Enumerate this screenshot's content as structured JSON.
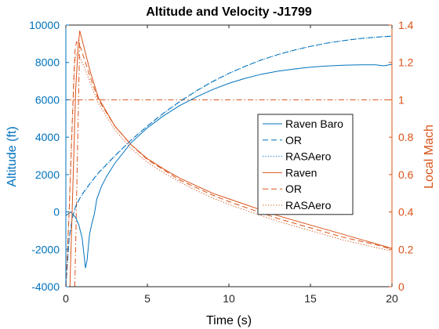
{
  "chart_data": {
    "type": "line",
    "title": "Altitude and Velocity -J1799",
    "xlabel": "Time (s)",
    "ylabel_left": "Altitude (ft)",
    "ylabel_right": "Local Mach",
    "xlim": [
      0,
      20
    ],
    "ylim_left": [
      -4000,
      10000
    ],
    "ylim_right": [
      0,
      1.4
    ],
    "xticks": [
      0,
      5,
      10,
      15,
      20
    ],
    "yticks_left": [
      -4000,
      -2000,
      0,
      2000,
      4000,
      6000,
      8000,
      10000
    ],
    "yticks_right": [
      0,
      0.2,
      0.4,
      0.6,
      0.8,
      1,
      1.2,
      1.4
    ],
    "grid": false,
    "legend_position": "center-right",
    "colors": {
      "left_axis": "#0072BD",
      "right_axis": "#D95319"
    },
    "series": [
      {
        "name": "Raven Baro",
        "axis": "left",
        "style": "solid",
        "x": [
          0,
          0.3,
          0.6,
          0.8,
          1.0,
          1.1,
          1.2,
          1.3,
          1.45,
          1.6,
          1.75,
          1.9,
          2.2,
          2.5,
          3,
          4,
          5,
          6,
          7,
          8,
          9,
          10,
          11,
          12,
          13,
          14,
          15,
          16,
          17,
          18,
          19,
          19.5,
          20
        ],
        "y": [
          -200,
          0,
          -300,
          -700,
          -1400,
          -2200,
          -3000,
          -2600,
          -1200,
          -600,
          -100,
          700,
          1400,
          1900,
          2600,
          3700,
          4500,
          5150,
          5700,
          6150,
          6550,
          6880,
          7150,
          7370,
          7530,
          7650,
          7750,
          7810,
          7850,
          7870,
          7870,
          7820,
          7900
        ]
      },
      {
        "name": "OR",
        "axis": "left",
        "style": "dashed",
        "x": [
          0,
          0.2,
          0.4,
          0.6,
          0.8,
          1,
          1.5,
          2,
          3,
          4,
          5,
          6,
          7,
          8,
          9,
          10,
          11,
          12,
          13,
          14,
          15,
          16,
          17,
          18,
          19,
          20
        ],
        "y": [
          -4000,
          -1400,
          -300,
          300,
          650,
          950,
          1550,
          2100,
          3000,
          3850,
          4600,
          5300,
          5920,
          6480,
          6980,
          7420,
          7800,
          8140,
          8420,
          8660,
          8860,
          9030,
          9160,
          9270,
          9350,
          9400
        ]
      },
      {
        "name": "RASAero",
        "axis": "left",
        "style": "dotted",
        "x": [
          0,
          0.2,
          0.4,
          0.6,
          0.8,
          1,
          1.5,
          2,
          3,
          4,
          5,
          6,
          7,
          8,
          9,
          10,
          11,
          12,
          13,
          14,
          15,
          16,
          17,
          18,
          19,
          20
        ],
        "y": [
          -4000,
          -1450,
          -350,
          260,
          620,
          920,
          1520,
          2070,
          2980,
          3830,
          4580,
          5280,
          5900,
          6460,
          6960,
          7410,
          7790,
          8130,
          8420,
          8660,
          8860,
          9030,
          9170,
          9280,
          9360,
          9420
        ]
      },
      {
        "name": "Raven",
        "axis": "right",
        "style": "solid",
        "x": [
          0.25,
          0.45,
          0.6,
          0.75,
          0.85,
          1,
          1.2,
          1.5,
          2,
          3,
          4,
          5,
          6,
          7,
          8,
          9,
          10,
          11,
          12,
          13,
          14,
          15,
          16,
          17,
          18,
          19,
          20
        ],
        "y": [
          0,
          0.6,
          1.05,
          1.28,
          1.37,
          1.32,
          1.25,
          1.15,
          1.01,
          0.86,
          0.76,
          0.685,
          0.63,
          0.58,
          0.54,
          0.5,
          0.47,
          0.44,
          0.41,
          0.38,
          0.355,
          0.33,
          0.305,
          0.28,
          0.255,
          0.23,
          0.205
        ]
      },
      {
        "name": "OR",
        "axis": "right",
        "style": "dashed",
        "x": [
          0,
          0.2,
          0.4,
          0.55,
          0.65,
          0.75,
          0.9,
          1.2,
          1.5,
          2,
          3,
          4,
          5,
          6,
          7,
          8,
          9,
          10,
          11,
          12,
          13,
          14,
          15,
          16,
          17,
          18,
          19,
          20
        ],
        "y": [
          0,
          0.4,
          0.9,
          1.25,
          1.31,
          1.3,
          1.28,
          1.2,
          1.12,
          1.0,
          0.86,
          0.76,
          0.68,
          0.625,
          0.57,
          0.53,
          0.49,
          0.455,
          0.425,
          0.395,
          0.365,
          0.34,
          0.315,
          0.29,
          0.265,
          0.245,
          0.225,
          0.2
        ]
      },
      {
        "name": "RASAero",
        "axis": "right",
        "style": "dotted",
        "x": [
          0,
          0.2,
          0.4,
          0.55,
          0.65,
          0.75,
          0.9,
          1.2,
          1.5,
          2,
          3,
          4,
          5,
          6,
          7,
          8,
          9,
          10,
          11,
          12,
          13,
          14,
          15,
          16,
          17,
          18,
          19,
          20
        ],
        "y": [
          0,
          0.4,
          0.88,
          1.2,
          1.25,
          1.25,
          1.22,
          1.16,
          1.09,
          0.98,
          0.84,
          0.74,
          0.665,
          0.61,
          0.56,
          0.515,
          0.475,
          0.44,
          0.41,
          0.38,
          0.35,
          0.325,
          0.3,
          0.275,
          0.25,
          0.23,
          0.21,
          0.19
        ]
      }
    ],
    "reference_lines": [
      {
        "axis": "right",
        "y": 1,
        "style": "dashdot"
      },
      {
        "axis": "right",
        "x": [
          0.55,
          0.85
        ],
        "style": "dashdot"
      }
    ]
  }
}
